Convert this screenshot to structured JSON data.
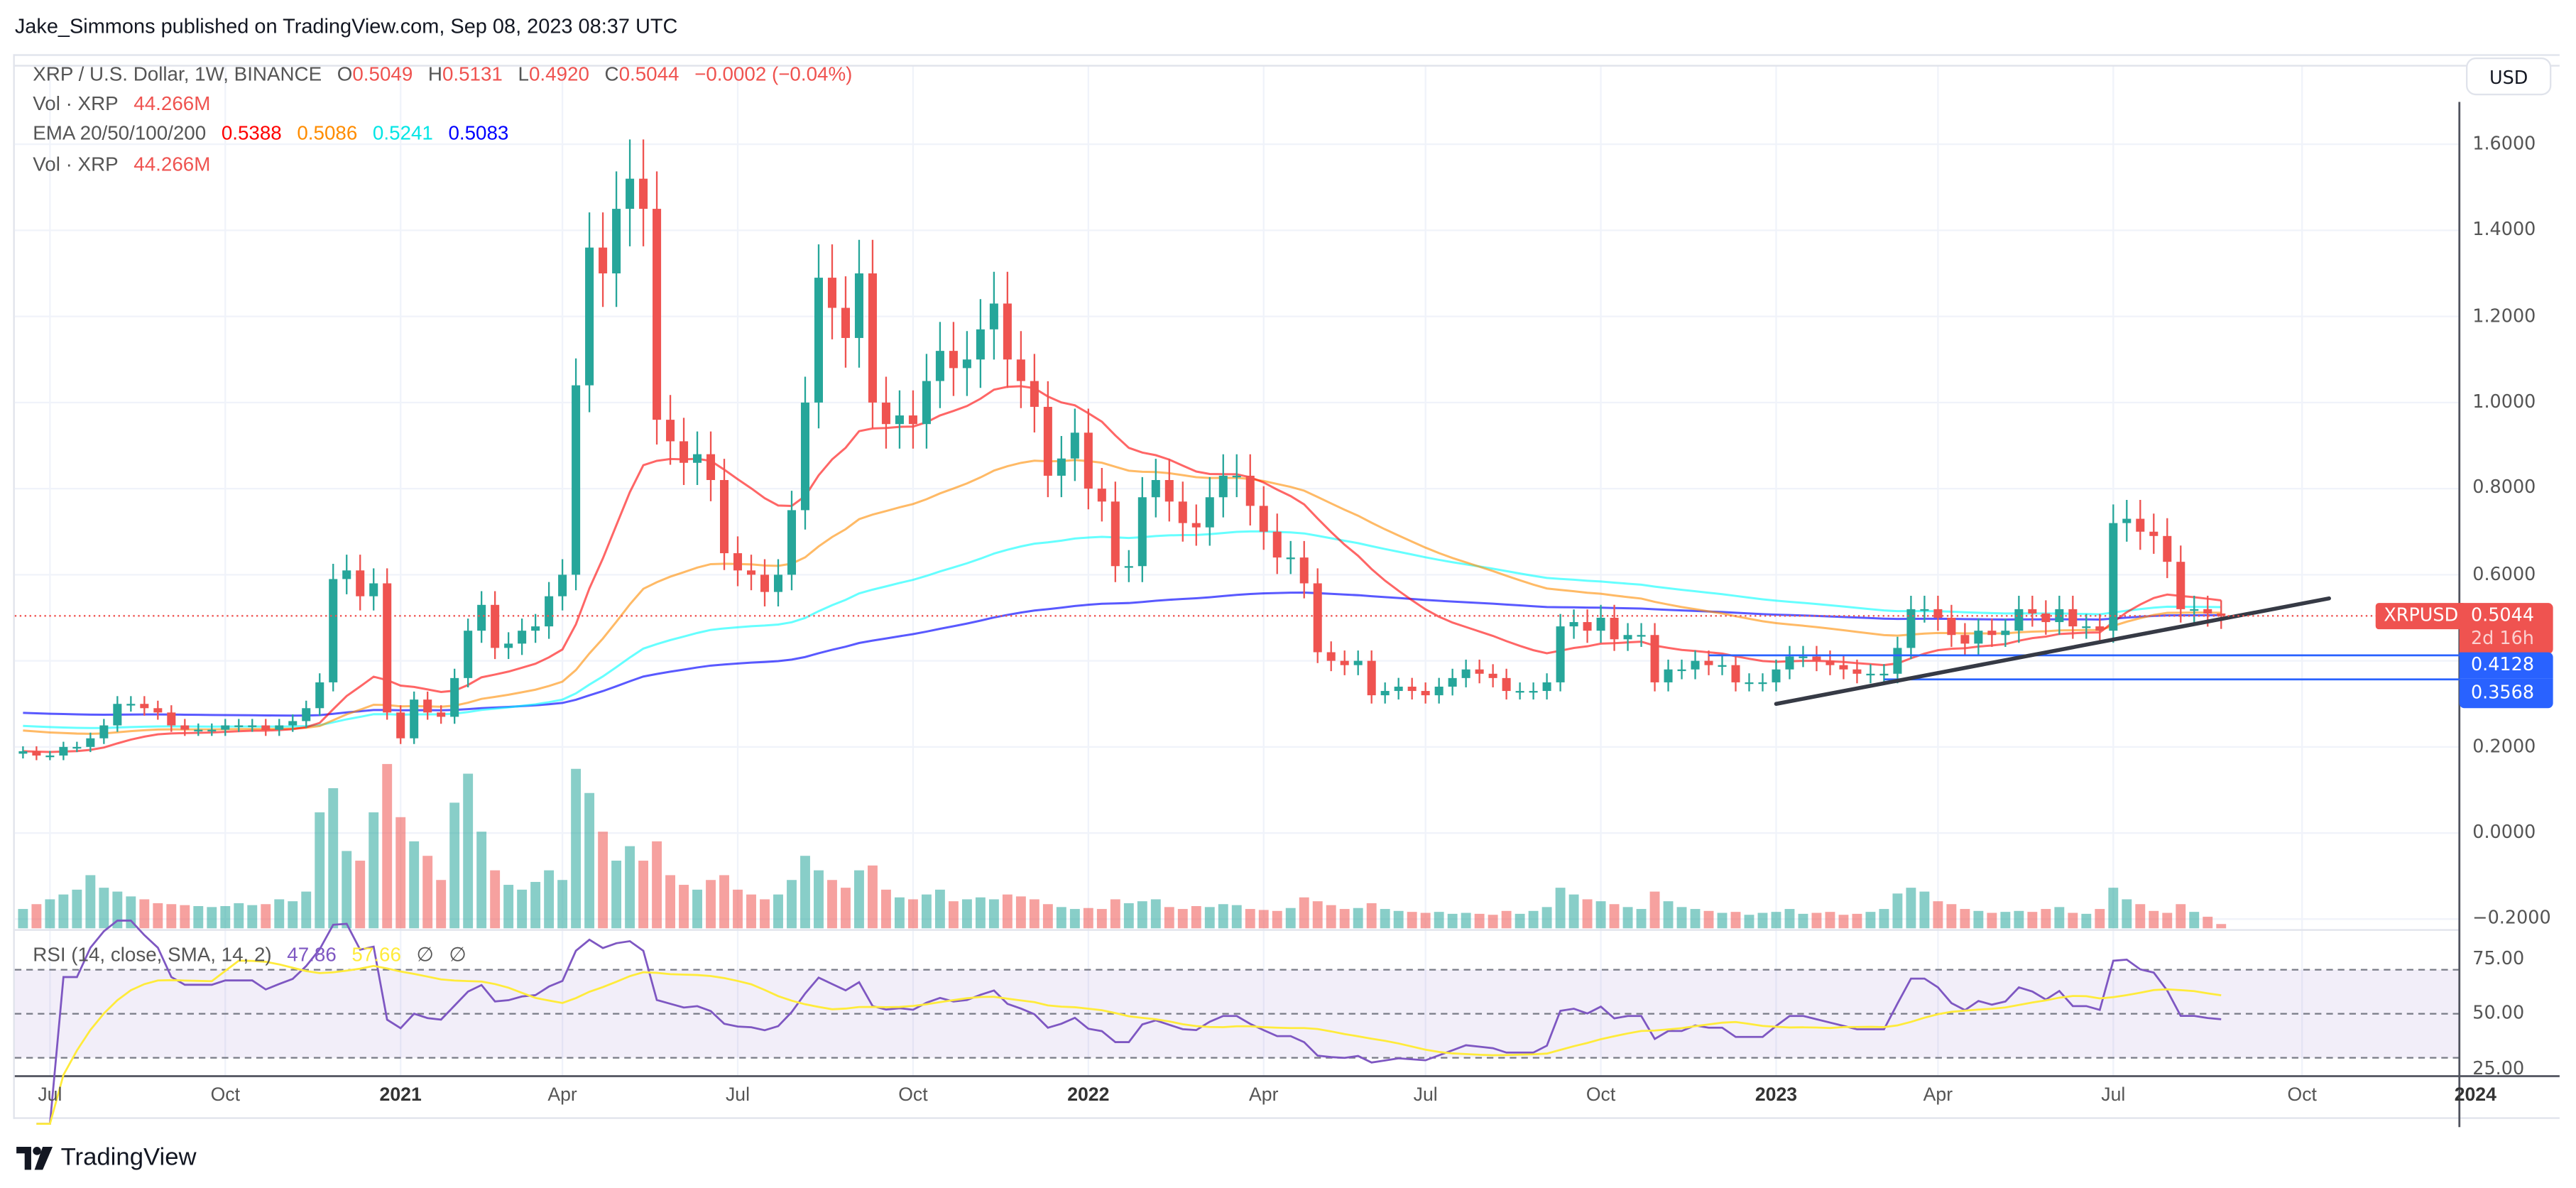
{
  "header": {
    "published": "Jake_Simmons published on TradingView.com, Sep 08, 2023 08:37 UTC"
  },
  "legend": {
    "symbol": "XRP / U.S. Dollar, 1W, BINANCE",
    "o_label": "O",
    "o": "0.5049",
    "h_label": "H",
    "h": "0.5131",
    "l_label": "L",
    "l": "0.4920",
    "c_label": "C",
    "c": "0.5044",
    "change": "−0.0002 (−0.04%)",
    "vol_label": "Vol · XRP",
    "vol": "44.266M",
    "ema_label": "EMA 20/50/100/200",
    "ema20": "0.5388",
    "ema50": "0.5086",
    "ema100": "0.5241",
    "ema200": "0.5083",
    "vol2_label": "Vol · XRP",
    "vol2": "44.266M",
    "rsi_label": "RSI (14, close, SMA, 14, 2)",
    "rsi": "47.86",
    "rsi_sma": "57.66",
    "na1": "∅",
    "na2": "∅"
  },
  "currency_button": "USD",
  "price_tags": {
    "symbol": "XRPUSD",
    "last": "0.5044",
    "countdown": "2d 16h",
    "level1": "0.4128",
    "level2": "0.3568"
  },
  "colors": {
    "up": "#26a69a",
    "down": "#ef5350",
    "ema20": "#ff0000",
    "ema50": "#ff8c00",
    "ema100": "#00ffff",
    "ema200": "#0000ff",
    "rsi": "#7e57c2",
    "rsi_sma": "#ffeb3b",
    "levels": "#2962ff",
    "trendline": "#363a45"
  },
  "logo": {
    "text": "TradingView",
    "icon": "tradingview-logo-icon"
  },
  "chart_data": {
    "type": "candlestick",
    "interval": "1W",
    "xlabel": "",
    "ylabel": "",
    "ylim": [
      -0.2,
      1.75
    ],
    "price_ticks": [
      "1.6000",
      "1.4000",
      "1.2000",
      "1.0000",
      "0.8000",
      "0.6000",
      "0.4000",
      "0.2000",
      "0.0000",
      "−0.2000"
    ],
    "price_tick_values": [
      1.6,
      1.4,
      1.2,
      1.0,
      0.8,
      0.6,
      0.4,
      0.2,
      0.0,
      -0.2
    ],
    "rsi_ticks": [
      "75.00",
      "50.00",
      "25.00"
    ],
    "rsi_tick_values": [
      75,
      50,
      25
    ],
    "rsi_bands": [
      70,
      50,
      30
    ],
    "time_ticks": [
      {
        "label": "Jul",
        "date": "2020-07",
        "week": 2,
        "year": false
      },
      {
        "label": "Oct",
        "date": "2020-10",
        "week": 15,
        "year": false
      },
      {
        "label": "2021",
        "date": "2021-01",
        "week": 28,
        "year": true
      },
      {
        "label": "Apr",
        "date": "2021-04",
        "week": 40,
        "year": false
      },
      {
        "label": "Jul",
        "date": "2021-07",
        "week": 53,
        "year": false
      },
      {
        "label": "Oct",
        "date": "2021-10",
        "week": 66,
        "year": false
      },
      {
        "label": "2022",
        "date": "2022-01",
        "week": 79,
        "year": true
      },
      {
        "label": "Apr",
        "date": "2022-04",
        "week": 92,
        "year": false
      },
      {
        "label": "Jul",
        "date": "2022-07",
        "week": 104,
        "year": false
      },
      {
        "label": "Oct",
        "date": "2022-10",
        "week": 117,
        "year": false
      },
      {
        "label": "2023",
        "date": "2023-01",
        "week": 130,
        "year": true
      },
      {
        "label": "Apr",
        "date": "2023-04",
        "week": 142,
        "year": false
      },
      {
        "label": "Jul",
        "date": "2023-07",
        "week": 155,
        "year": false
      },
      {
        "label": "Oct",
        "date": "2023-10",
        "week": 169,
        "year": false
      },
      {
        "label": "2024",
        "date": "2024-01",
        "week": 182,
        "year": true
      }
    ],
    "first_week": "2020-06-15",
    "last_week": "2023-09-04",
    "close": [
      0.19,
      0.18,
      0.18,
      0.2,
      0.2,
      0.22,
      0.25,
      0.3,
      0.3,
      0.29,
      0.28,
      0.25,
      0.24,
      0.24,
      0.24,
      0.25,
      0.25,
      0.25,
      0.24,
      0.25,
      0.26,
      0.29,
      0.35,
      0.59,
      0.61,
      0.55,
      0.58,
      0.28,
      0.22,
      0.31,
      0.28,
      0.27,
      0.36,
      0.47,
      0.53,
      0.43,
      0.44,
      0.47,
      0.48,
      0.55,
      0.6,
      1.04,
      1.36,
      1.3,
      1.45,
      1.52,
      1.45,
      0.96,
      0.91,
      0.86,
      0.88,
      0.82,
      0.65,
      0.61,
      0.6,
      0.56,
      0.6,
      0.75,
      1.0,
      1.29,
      1.22,
      1.15,
      1.3,
      1.0,
      0.95,
      0.97,
      0.95,
      1.05,
      1.12,
      1.08,
      1.1,
      1.17,
      1.23,
      1.1,
      1.05,
      0.99,
      0.83,
      0.87,
      0.93,
      0.8,
      0.77,
      0.62,
      0.62,
      0.78,
      0.82,
      0.77,
      0.72,
      0.71,
      0.78,
      0.83,
      0.83,
      0.76,
      0.7,
      0.64,
      0.64,
      0.58,
      0.42,
      0.4,
      0.39,
      0.4,
      0.32,
      0.33,
      0.34,
      0.33,
      0.32,
      0.34,
      0.36,
      0.38,
      0.37,
      0.36,
      0.33,
      0.33,
      0.33,
      0.35,
      0.48,
      0.49,
      0.47,
      0.5,
      0.45,
      0.46,
      0.46,
      0.35,
      0.38,
      0.38,
      0.4,
      0.39,
      0.39,
      0.35,
      0.35,
      0.35,
      0.38,
      0.41,
      0.41,
      0.4,
      0.39,
      0.38,
      0.37,
      0.37,
      0.37,
      0.43,
      0.52,
      0.52,
      0.5,
      0.46,
      0.44,
      0.47,
      0.46,
      0.47,
      0.52,
      0.51,
      0.49,
      0.52,
      0.48,
      0.48,
      0.47,
      0.72,
      0.73,
      0.7,
      0.69,
      0.63,
      0.52,
      0.52,
      0.51,
      0.5044
    ],
    "volume_millions": [
      200,
      250,
      300,
      350,
      400,
      550,
      420,
      380,
      330,
      300,
      260,
      250,
      240,
      230,
      220,
      230,
      260,
      240,
      250,
      300,
      280,
      380,
      1200,
      1450,
      800,
      700,
      1200,
      1700,
      1150,
      900,
      750,
      500,
      1300,
      1600,
      1000,
      600,
      450,
      400,
      480,
      600,
      500,
      1650,
      1400,
      1000,
      700,
      850,
      700,
      900,
      550,
      450,
      400,
      500,
      550,
      400,
      350,
      300,
      350,
      500,
      750,
      600,
      500,
      420,
      600,
      650,
      400,
      320,
      300,
      350,
      400,
      280,
      300,
      320,
      300,
      350,
      330,
      300,
      250,
      220,
      200,
      210,
      200,
      300,
      260,
      280,
      300,
      220,
      200,
      230,
      220,
      250,
      240,
      200,
      190,
      180,
      210,
      320,
      280,
      240,
      200,
      210,
      260,
      200,
      180,
      170,
      160,
      170,
      150,
      160,
      150,
      140,
      180,
      150,
      180,
      220,
      420,
      350,
      300,
      280,
      250,
      220,
      200,
      380,
      280,
      220,
      200,
      180,
      160,
      170,
      140,
      160,
      170,
      200,
      150,
      160,
      170,
      140,
      150,
      170,
      200,
      360,
      420,
      380,
      280,
      250,
      200,
      180,
      160,
      170,
      180,
      170,
      200,
      220,
      160,
      150,
      200,
      420,
      300,
      250,
      180,
      160,
      250,
      170,
      120,
      44.266
    ],
    "ema_initial": {
      "ema20": 0.19,
      "ema50": 0.24,
      "ema100": 0.25,
      "ema200": 0.28
    },
    "horizontal_levels": [
      {
        "price": 0.4128,
        "from_week": 125
      },
      {
        "price": 0.3568,
        "from_week": 138
      }
    ],
    "trendline": {
      "from": {
        "week": 130,
        "price": 0.3
      },
      "to": {
        "week": 171,
        "price": 0.545
      }
    },
    "last_price": 0.5044
  }
}
